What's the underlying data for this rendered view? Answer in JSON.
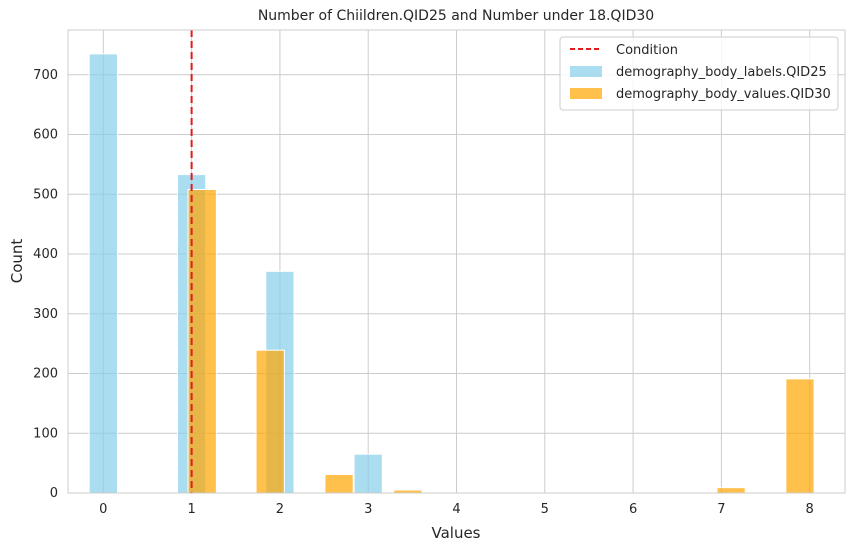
{
  "chart_data": {
    "type": "bar",
    "title": "Number of Chiildren.QID25 and Number under 18.QID30",
    "xlabel": "Values",
    "ylabel": "Count",
    "xlim": [
      -0.4,
      8.4
    ],
    "ylim": [
      0,
      775
    ],
    "xticks": [
      0,
      1,
      2,
      3,
      4,
      5,
      6,
      7,
      8
    ],
    "yticks": [
      0,
      100,
      200,
      300,
      400,
      500,
      600,
      700
    ],
    "grid": true,
    "legend_position": "top-right",
    "reference_line": {
      "name": "Condition",
      "x": 1,
      "color": "#e31a1c",
      "style": "dashed"
    },
    "series": [
      {
        "name": "demography_body_labels.QID25",
        "color": "#87ceeb",
        "bin_width": 0.32,
        "bins": [
          {
            "x": 0,
            "value": 735
          },
          {
            "x": 1,
            "value": 533
          },
          {
            "x": 2,
            "value": 371
          },
          {
            "x": 3,
            "value": 65
          }
        ]
      },
      {
        "name": "demography_body_values.QID30",
        "color": "#ffa500",
        "bin_width": 0.32,
        "bins": [
          {
            "x": 1.12,
            "value": 508
          },
          {
            "x": 1.89,
            "value": 239
          },
          {
            "x": 2.67,
            "value": 31
          },
          {
            "x": 3.45,
            "value": 5
          },
          {
            "x": 7.11,
            "value": 9
          },
          {
            "x": 7.89,
            "value": 191
          }
        ]
      }
    ]
  }
}
